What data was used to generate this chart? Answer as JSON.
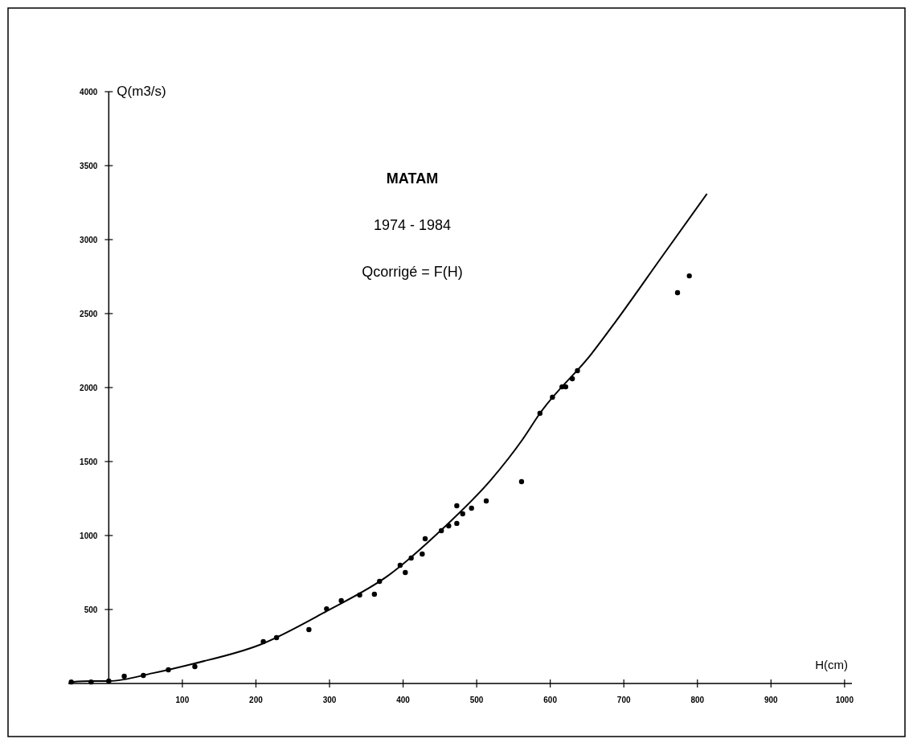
{
  "chart_data": {
    "type": "scatter",
    "title": "MATAM",
    "subtitle": "1974 - 1984",
    "annotations": [
      "Qcorrigé = F(H)"
    ],
    "xlabel": "H(cm)",
    "ylabel": "Q(m3/s)",
    "xlim": [
      -55,
      1010
    ],
    "ylim": [
      0,
      4000
    ],
    "xticks": [
      100,
      200,
      300,
      400,
      500,
      600,
      700,
      800,
      900,
      1000
    ],
    "yticks": [
      500,
      1000,
      1500,
      2000,
      2500,
      3000,
      3500,
      4000
    ],
    "grid": false,
    "marker": "circle",
    "series": [
      {
        "color": "#000000",
        "x": [
          -51,
          -24,
          0,
          21,
          47,
          81,
          117,
          210,
          228,
          272,
          296,
          316,
          341,
          361,
          368,
          396,
          403,
          411,
          426,
          430,
          452,
          462,
          473,
          473,
          481,
          493,
          513,
          561,
          586,
          603,
          616,
          621,
          630,
          637,
          773,
          789
        ],
        "values": [
          10,
          10,
          16,
          49,
          54,
          92,
          114,
          283,
          310,
          364,
          505,
          560,
          598,
          603,
          690,
          799,
          750,
          848,
          875,
          978,
          1033,
          1065,
          1201,
          1082,
          1147,
          1185,
          1234,
          1364,
          1826,
          1935,
          2005,
          2005,
          2060,
          2114,
          2641,
          2755
        ]
      },
      {
        "type": "line",
        "color": "#000000",
        "marker": "none",
        "line_style": "solid",
        "x": [
          -51,
          -24,
          0,
          60,
          117,
          205,
          296,
          380,
          452,
          520,
          562,
          586,
          656,
          688,
          752,
          813
        ],
        "values": [
          10,
          16,
          16,
          70,
          136,
          261,
          489,
          730,
          1038,
          1380,
          1647,
          1826,
          2228,
          2440,
          2886,
          3310
        ]
      }
    ]
  }
}
